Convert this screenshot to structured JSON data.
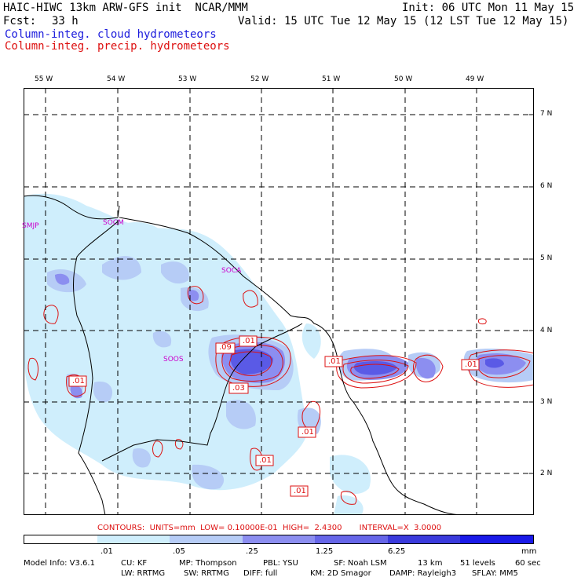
{
  "header": {
    "model_title": "HAIC-HIWC 13km ARW-GFS init  NCAR/MMM",
    "init": "Init: 06 UTC Mon 11 May 15",
    "fcst_label": "Fcst:",
    "fcst_value": "33 h",
    "valid": "Valid: 15 UTC Tue 12 May 15 (12 LST Tue 12 May 15)",
    "field_cloud": "Column-integ. cloud hydrometeors",
    "field_precip": "Column-integ. precip. hydrometeors"
  },
  "axes": {
    "lon_labels": [
      "55 W",
      "54 W",
      "53 W",
      "52 W",
      "51 W",
      "50 W",
      "49 W"
    ],
    "lat_labels": [
      "7 N",
      "6 N",
      "5 N",
      "4 N",
      "3 N",
      "2 N"
    ]
  },
  "map_labels": [
    "SMJP",
    "SOCM",
    "SOCA",
    "SOOS"
  ],
  "contour_labels": [
    ".09",
    ".01",
    ".03",
    ".01",
    ".01",
    ".01",
    ".01",
    ".01",
    ".01"
  ],
  "contours_info": "CONTOURS:  UNITS=mm  LOW= 0.10000E-01  HIGH=  2.4300       INTERVAL=X  3.0000",
  "colorbar": {
    "colors": [
      "#ffffff",
      "#cfeefc",
      "#b6ccf6",
      "#8c8ef0",
      "#6666e8",
      "#3a3adc",
      "#1a1ae8"
    ],
    "labels": [
      ".01",
      ".05",
      ".25",
      "1.25",
      "6.25"
    ],
    "units": "mm"
  },
  "model_info": {
    "line1": [
      "Model Info: V3.6.1",
      "CU: KF",
      "MP: Thompson",
      "PBL: YSU",
      "SF: Noah LSM",
      "13 km",
      "51 levels",
      "60 sec"
    ],
    "line2": [
      "LW: RRTMG",
      "SW: RRTMG",
      "DIFF: full",
      "KM: 2D Smagor",
      "DAMP: Rayleigh3",
      "SFLAY: MM5"
    ]
  }
}
